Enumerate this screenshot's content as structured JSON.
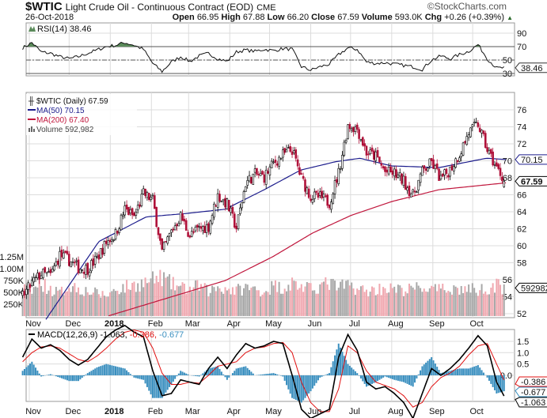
{
  "header": {
    "symbol": "$WTIC",
    "name": "Light Crude Oil - Continuous Contract (EOD)",
    "exchange": "CME",
    "copyright": "©StockCharts.com",
    "date": "26-Oct-2018",
    "open_label": "Open",
    "open": "66.95",
    "high_label": "High",
    "high": "67.88",
    "low_label": "Low",
    "low": "66.20",
    "close_label": "Close",
    "close": "67.59",
    "volume_label": "Volume",
    "volume": "593.0K",
    "chg_label": "Chg",
    "chg": "+0.26 (+0.39%)",
    "chg_arrow": "▲"
  },
  "colors": {
    "up": "#000000",
    "down": "#b0123a",
    "ma50": "#1c1c8c",
    "ma200": "#c0163c",
    "vol_up": "#a8a8a8",
    "vol_down": "#f0a8b0",
    "rsi_fill": "#5a8a5a",
    "macd": "#000000",
    "signal": "#e01010",
    "hist": "#3a8fbf",
    "grid": "#dcdcdc"
  },
  "chart_data": [
    {
      "type": "line",
      "title": "RSI(14) 38.46",
      "series_name": "RSI(14)",
      "last": "38.46",
      "start_date": "2017-10-27",
      "interval": "weekly",
      "values": [
        68,
        76,
        62,
        60,
        55,
        52,
        55,
        60,
        65,
        70,
        72,
        76,
        72,
        66,
        45,
        33,
        47,
        55,
        48,
        56,
        60,
        52,
        48,
        62,
        65,
        63,
        66,
        64,
        67,
        66,
        40,
        35,
        40,
        44,
        58,
        68,
        66,
        47,
        45,
        46,
        44,
        42,
        40,
        36,
        50,
        56,
        52,
        58,
        63,
        73,
        52,
        38,
        38.46
      ],
      "yticks": [
        "90",
        "70",
        "50",
        "30"
      ],
      "ylim": [
        30,
        90
      ]
    },
    {
      "type": "candlestick",
      "title": "$WTIC (Daily) 67.59",
      "legend": {
        "price": "$WTIC (Daily) 67.59",
        "ma50": "MA(50) 70.15",
        "ma200": "MA(200) 67.40",
        "volume": "Volume 592,982"
      },
      "start_date": "2017-10-27",
      "interval": "weekly",
      "close": [
        54.0,
        55.6,
        56.7,
        56.5,
        58.9,
        58.3,
        57.4,
        57.3,
        58.5,
        60.4,
        61.4,
        64.3,
        63.4,
        66.1,
        65.4,
        59.2,
        61.7,
        63.5,
        61.2,
        62.0,
        62.3,
        65.9,
        64.9,
        62.1,
        67.4,
        68.4,
        68.1,
        69.7,
        70.7,
        71.3,
        67.9,
        65.8,
        65.7,
        65.1,
        68.6,
        74.2,
        73.8,
        71.0,
        70.5,
        68.7,
        68.5,
        67.6,
        65.9,
        68.7,
        69.8,
        67.8,
        69.0,
        70.8,
        73.3,
        74.3,
        71.3,
        69.1,
        67.59
      ],
      "ma50_anchors": [
        [
          2.3,
          51
        ],
        [
          8.2,
          60.5
        ],
        [
          13.3,
          63.4
        ],
        [
          17.6,
          63.8
        ],
        [
          21.8,
          64.3
        ],
        [
          26,
          66.6
        ],
        [
          29.9,
          68.9
        ],
        [
          33.7,
          69.9
        ],
        [
          36.3,
          70.3
        ],
        [
          39.7,
          69.4
        ],
        [
          44.8,
          69.2
        ],
        [
          49.9,
          70.3
        ],
        [
          52,
          70.15
        ]
      ],
      "ma200_anchors": [
        [
          9.1,
          51.7
        ],
        [
          21.8,
          55.9
        ],
        [
          26.9,
          58.7
        ],
        [
          31.2,
          61.5
        ],
        [
          35.4,
          63.6
        ],
        [
          39.7,
          65.2
        ],
        [
          44.8,
          66.6
        ],
        [
          52,
          67.4
        ]
      ],
      "volume_k": [
        620,
        540,
        700,
        560,
        480,
        650,
        590,
        520,
        480,
        430,
        560,
        610,
        650,
        700,
        760,
        820,
        680,
        600,
        560,
        640,
        520,
        610,
        580,
        540,
        600,
        560,
        520,
        640,
        600,
        700,
        620,
        560,
        640,
        690,
        600,
        660,
        580,
        520,
        560,
        600,
        560,
        540,
        580,
        600,
        560,
        540,
        600,
        560,
        580,
        540,
        600,
        640,
        593
      ],
      "yticks": [
        "76",
        "74",
        "72",
        "70",
        "68",
        "66",
        "64",
        "62",
        "60",
        "58",
        "56",
        "54",
        "52"
      ],
      "ylim": [
        51.5,
        77
      ],
      "vol_ticks": [
        "1.25M",
        "1.00M",
        "750K",
        "500K",
        "250K"
      ],
      "labels": {
        "ma50": "70.15",
        "close": "67.59",
        "volume": "592982"
      }
    },
    {
      "type": "line",
      "title": "MACD(12,26,9) -1.063, -0.386, -0.677",
      "legend": {
        "name": "MACD(12,26,9)",
        "macd": "-1.063,",
        "signal": "-0.386,",
        "hist": "-0.677"
      },
      "start_date": "2017-10-27",
      "interval": "weekly",
      "macd": [
        0.8,
        1.6,
        1.2,
        1.35,
        1.1,
        0.7,
        0.45,
        0.7,
        1.2,
        1.7,
        2.0,
        2.2,
        1.9,
        1.7,
        0.2,
        -0.9,
        -0.8,
        -0.2,
        -0.3,
        -0.4,
        0.3,
        0.8,
        0.3,
        0.9,
        1.4,
        1.2,
        1.3,
        1.5,
        1.4,
        0.0,
        -1.5,
        -1.9,
        -1.7,
        -1.5,
        0.8,
        1.8,
        1.1,
        -0.3,
        -0.6,
        -0.5,
        -0.8,
        -1.2,
        -1.9,
        -0.8,
        0.3,
        0.0,
        0.3,
        0.7,
        1.2,
        1.75,
        1.3,
        -0.3,
        -1.063
      ],
      "signal": [
        0.6,
        1.0,
        1.25,
        1.3,
        1.2,
        0.95,
        0.7,
        0.6,
        0.85,
        1.2,
        1.6,
        1.9,
        2.0,
        1.9,
        1.2,
        0.1,
        -0.4,
        -0.4,
        -0.3,
        -0.35,
        0.0,
        0.4,
        0.5,
        0.6,
        1.0,
        1.2,
        1.25,
        1.4,
        1.45,
        1.0,
        -0.3,
        -1.2,
        -1.6,
        -1.6,
        -0.6,
        1.3,
        1.0,
        0.2,
        -0.3,
        -0.45,
        -0.6,
        -0.9,
        -1.4,
        -1.2,
        -0.5,
        -0.1,
        0.1,
        0.4,
        0.9,
        1.3,
        1.4,
        0.5,
        -0.386
      ],
      "yticks": [
        "1.5",
        "1.0",
        "0.5",
        "0.0"
      ],
      "labels": {
        "signal": "-0.386",
        "hist": "-0.677",
        "macd": "-1.063"
      }
    }
  ],
  "x_axis": {
    "months": [
      {
        "label": "Nov",
        "date": "2017-11-01"
      },
      {
        "label": "Dec",
        "date": "2017-12-01"
      },
      {
        "label": "2018",
        "date": "2018-01-01",
        "bold": true
      },
      {
        "label": "Feb",
        "date": "2018-02-01"
      },
      {
        "label": "Mar",
        "date": "2018-03-01"
      },
      {
        "label": "Apr",
        "date": "2018-04-01"
      },
      {
        "label": "May",
        "date": "2018-05-01"
      },
      {
        "label": "Jun",
        "date": "2018-06-01"
      },
      {
        "label": "Jul",
        "date": "2018-07-01"
      },
      {
        "label": "Aug",
        "date": "2018-08-01"
      },
      {
        "label": "Sep",
        "date": "2018-09-01"
      },
      {
        "label": "Oct",
        "date": "2018-10-01"
      }
    ]
  }
}
